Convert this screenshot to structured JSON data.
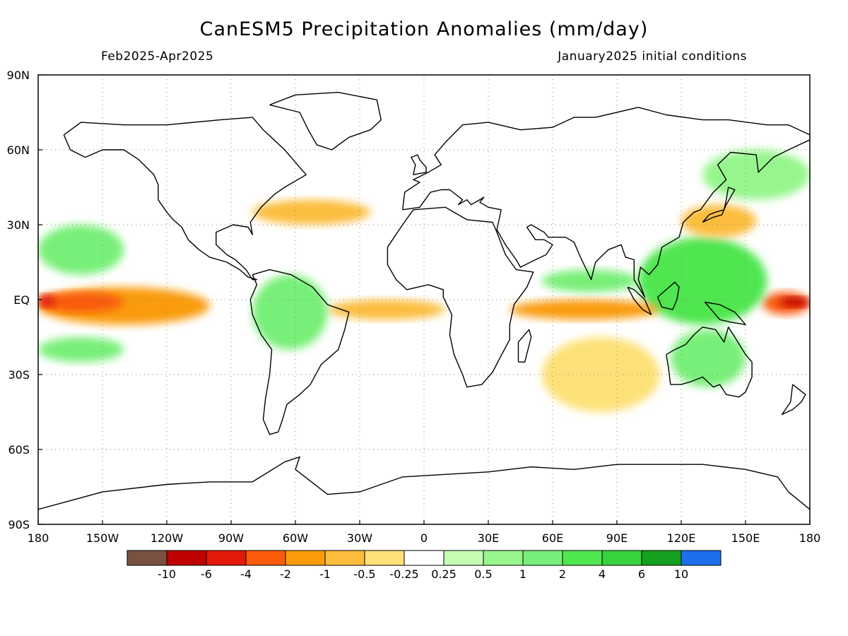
{
  "header": {
    "title": "CanESM5 Precipitation Anomalies (mm/day)",
    "period": "Feb2025-Apr2025",
    "init": "January2025 initial conditions"
  },
  "axes": {
    "lat_labels": [
      "90N",
      "60N",
      "30N",
      "EQ",
      "30S",
      "60S",
      "90S"
    ],
    "lat_values": [
      90,
      60,
      30,
      0,
      -30,
      -60,
      -90
    ],
    "lon_labels": [
      "180",
      "150W",
      "120W",
      "90W",
      "60W",
      "30W",
      "0",
      "30E",
      "60E",
      "90E",
      "120E",
      "150E",
      "180"
    ],
    "lon_values": [
      -180,
      -150,
      -120,
      -90,
      -60,
      -30,
      0,
      30,
      60,
      90,
      120,
      150,
      180
    ]
  },
  "colorbar": {
    "colors": [
      "#7a5040",
      "#be0000",
      "#e11a0a",
      "#fa5a0a",
      "#fa9b0a",
      "#fcbd3c",
      "#fde178",
      "#ffffff",
      "#c4fcb4",
      "#96f58c",
      "#78ef78",
      "#50e650",
      "#37d23c",
      "#14a01e",
      "#1e6eeb"
    ],
    "labels": [
      "-10",
      "-6",
      "-4",
      "-2",
      "-1",
      "-0.5",
      "-0.25",
      "0.25",
      "0.5",
      "1",
      "2",
      "4",
      "6",
      "10"
    ]
  },
  "anomalies": [
    {
      "name": "central-pacific-equatorial-dry",
      "lon": [
        -180,
        -100
      ],
      "lat": [
        -10,
        5
      ],
      "level": "-2",
      "color": "#fa9b0a"
    },
    {
      "name": "dateline-strong-dry",
      "lon": [
        -180,
        -140
      ],
      "lat": [
        -5,
        3
      ],
      "level": "-4",
      "color": "#fa5a0a"
    },
    {
      "name": "dateline-core-dry",
      "lon": [
        -180,
        -172
      ],
      "lat": [
        -3,
        2
      ],
      "level": "-6",
      "color": "#e11a0a"
    },
    {
      "name": "west-pacific-dry",
      "lon": [
        158,
        180
      ],
      "lat": [
        -6,
        3
      ],
      "level": "-4",
      "color": "#fa5a0a"
    },
    {
      "name": "west-pacific-core-dry",
      "lon": [
        166,
        180
      ],
      "lat": [
        -3,
        1
      ],
      "level": "-6",
      "color": "#be0000"
    },
    {
      "name": "maritime-continent-wet",
      "lon": [
        100,
        160
      ],
      "lat": [
        -10,
        25
      ],
      "level": "2",
      "color": "#50e650"
    },
    {
      "name": "australia-wet",
      "lon": [
        115,
        150
      ],
      "lat": [
        -35,
        -12
      ],
      "level": "1",
      "color": "#78ef78"
    },
    {
      "name": "north-pacific-subtropical-wet",
      "lon": [
        -180,
        -140
      ],
      "lat": [
        10,
        30
      ],
      "level": "1",
      "color": "#78ef78"
    },
    {
      "name": "south-pacific-wet",
      "lon": [
        -180,
        -140
      ],
      "lat": [
        -25,
        -15
      ],
      "level": "1",
      "color": "#78ef78"
    },
    {
      "name": "atlantic-itcz-dry",
      "lon": [
        -45,
        10
      ],
      "lat": [
        -8,
        0
      ],
      "level": "-1",
      "color": "#fcbd3c"
    },
    {
      "name": "indian-ocean-dry",
      "lon": [
        40,
        110
      ],
      "lat": [
        -8,
        0
      ],
      "level": "-2",
      "color": "#fa9b0a"
    },
    {
      "name": "indian-ocean-north-wet",
      "lon": [
        55,
        100
      ],
      "lat": [
        3,
        12
      ],
      "level": "1",
      "color": "#78ef78"
    },
    {
      "name": "south-indian-dry",
      "lon": [
        55,
        110
      ],
      "lat": [
        -45,
        -15
      ],
      "level": "-0.5",
      "color": "#fde178"
    },
    {
      "name": "north-atlantic-dry",
      "lon": [
        -80,
        -25
      ],
      "lat": [
        30,
        40
      ],
      "level": "-0.5",
      "color": "#fcbd3c"
    },
    {
      "name": "south-america-wet",
      "lon": [
        -80,
        -45
      ],
      "lat": [
        -20,
        10
      ],
      "level": "1",
      "color": "#78ef78"
    },
    {
      "name": "east-asia-dry",
      "lon": [
        120,
        155
      ],
      "lat": [
        25,
        38
      ],
      "level": "-0.5",
      "color": "#fcbd3c"
    },
    {
      "name": "north-pacific-high-lat-wet",
      "lon": [
        130,
        180
      ],
      "lat": [
        40,
        60
      ],
      "level": "0.5",
      "color": "#96f58c"
    }
  ]
}
